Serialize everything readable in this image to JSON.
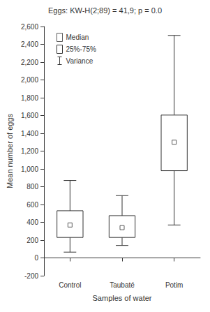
{
  "chart_data": {
    "type": "box",
    "title": "Eggs: KW-H(2;89) = 41,9; p = 0.0",
    "xlabel": "Samples of water",
    "ylabel": "Mean number of eggs",
    "categories": [
      "Control",
      "Taubaté",
      "Potim"
    ],
    "series": [
      {
        "name": "Median",
        "color": "#333333",
        "marker": "square",
        "values": [
          370,
          340,
          1300
        ]
      },
      {
        "name": "25%-75%",
        "color": "#333333",
        "values": [
          [
            230,
            530
          ],
          [
            230,
            475
          ],
          [
            980,
            1605
          ]
        ]
      },
      {
        "name": "Variance",
        "color": "#333333",
        "values": [
          [
            65,
            870
          ],
          [
            140,
            700
          ],
          [
            370,
            2500
          ]
        ]
      }
    ],
    "ylim": [
      -200,
      2600
    ],
    "yticks": [
      -200,
      0,
      200,
      400,
      600,
      800,
      {
        "value": 1000,
        "label": "1,000"
      },
      {
        "value": 1200,
        "label": "1,200"
      },
      {
        "value": 1400,
        "label": "1,400"
      },
      {
        "value": 1600,
        "label": "1,600"
      },
      {
        "value": 1800,
        "label": "1,800"
      },
      {
        "value": 2000,
        "label": "2,000"
      },
      {
        "value": 2200,
        "label": "2,200"
      },
      {
        "value": 2400,
        "label": "2,400"
      },
      {
        "value": 2600,
        "label": "2,600"
      }
    ],
    "legend": "top-left",
    "grid": false
  }
}
